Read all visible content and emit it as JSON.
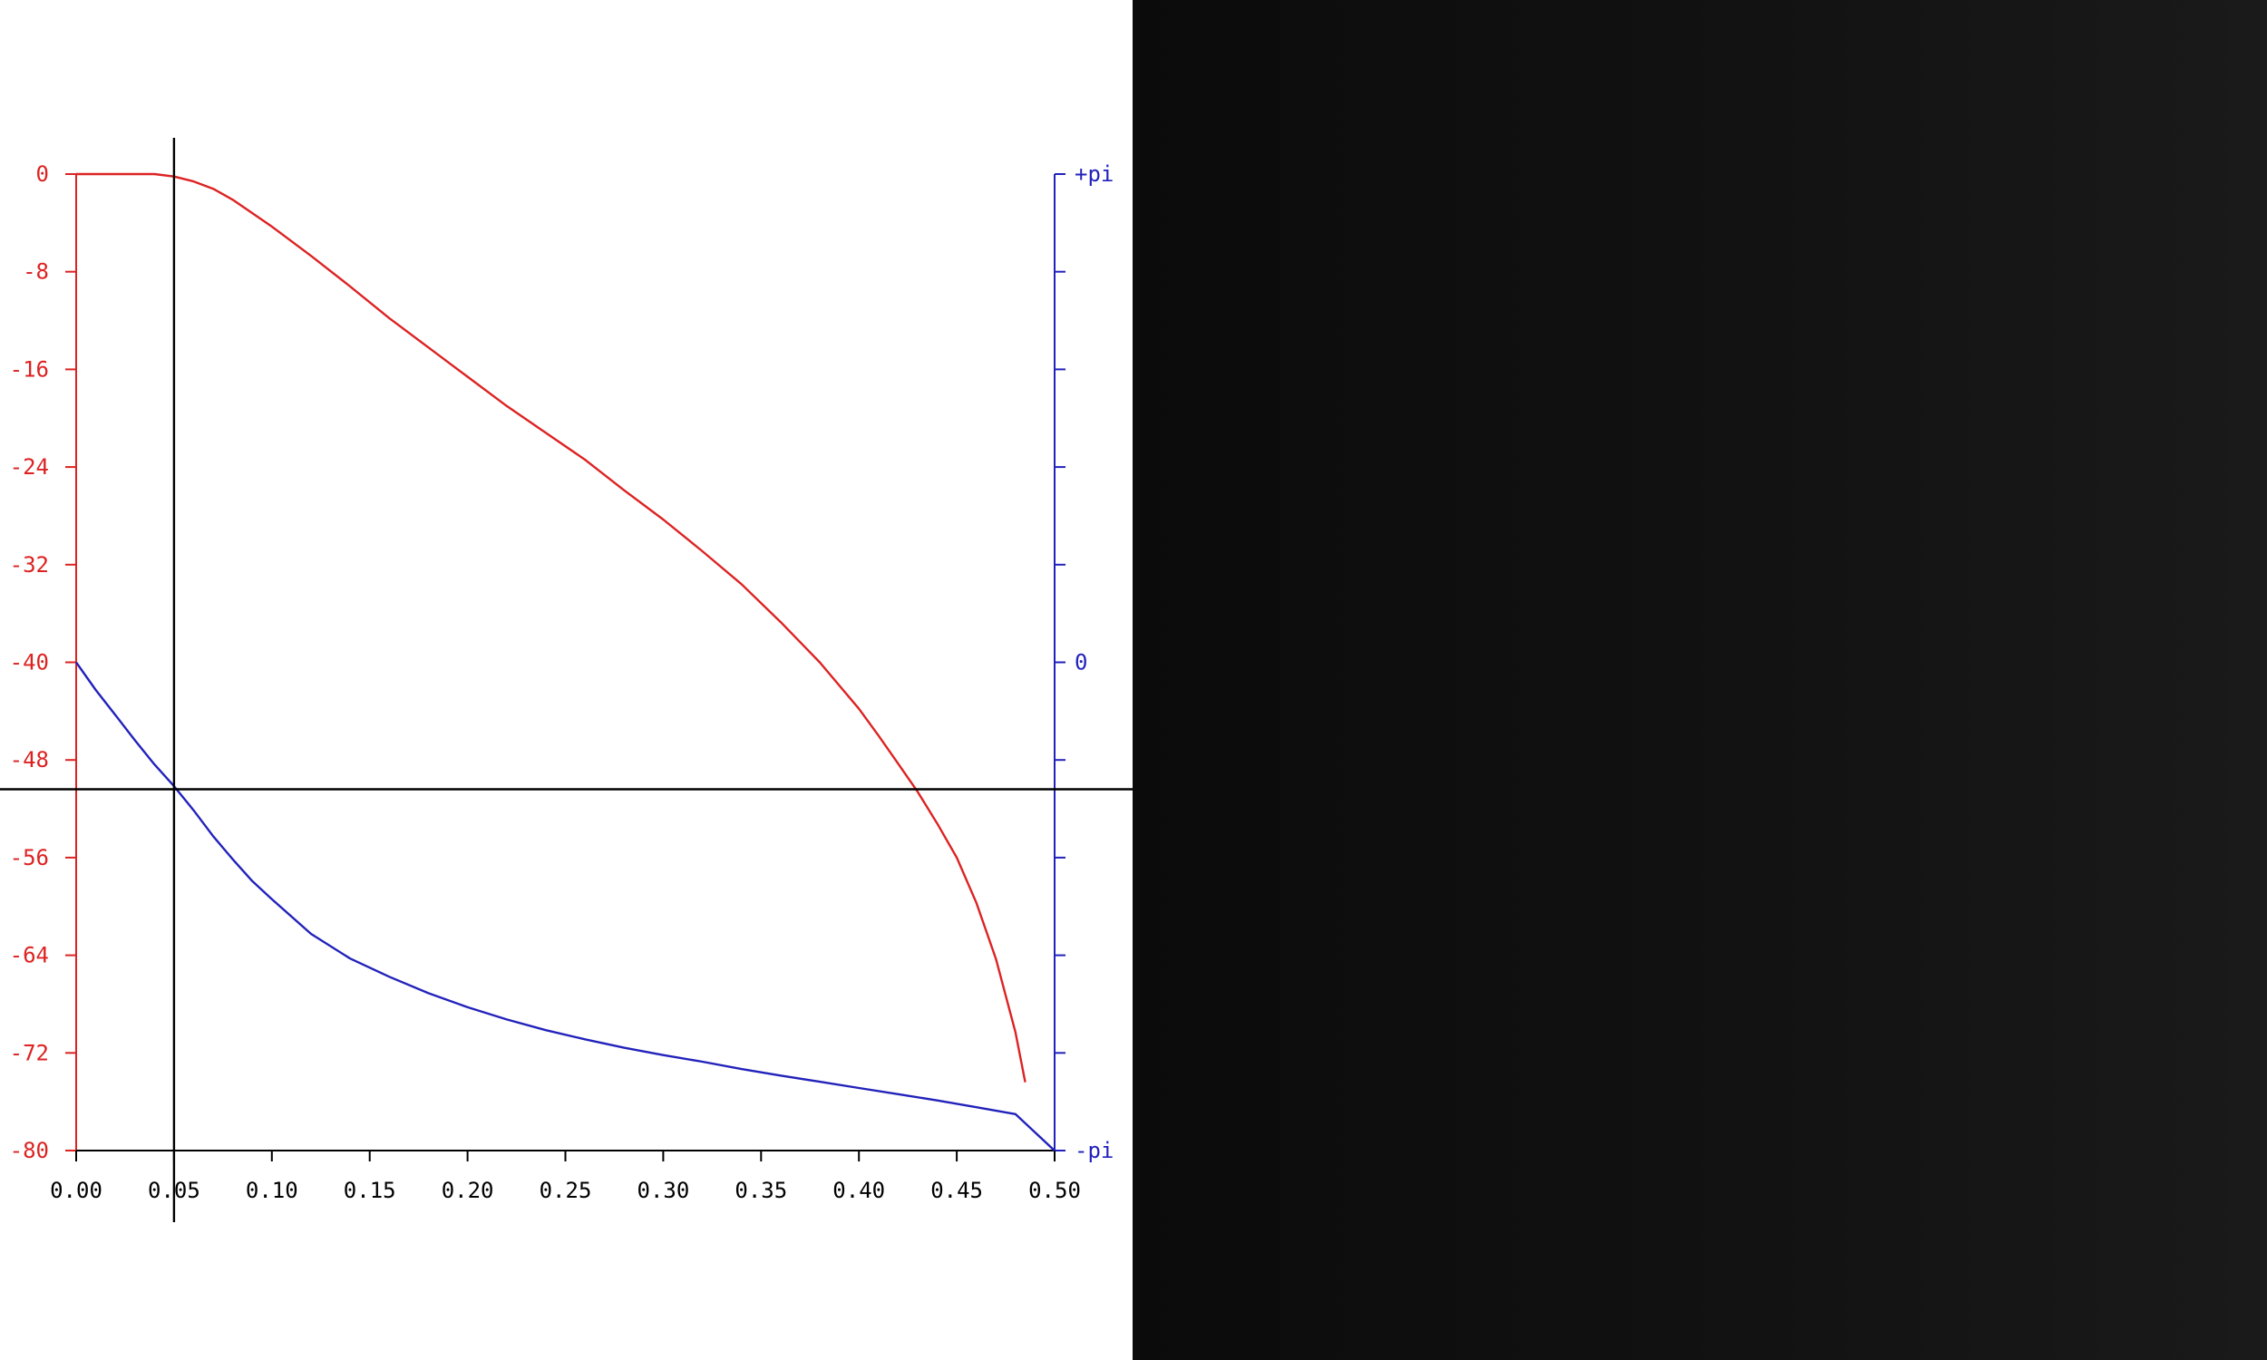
{
  "colors": {
    "left_axis": "#dd2222",
    "right_axis": "#2222bb",
    "bottom_axis": "#000000",
    "cursor": "#000000",
    "dark_panel": "#111111"
  },
  "chart_data": {
    "type": "line",
    "title": "",
    "xlabel": "",
    "ylabel": "",
    "xlim": [
      0,
      0.5
    ],
    "ylim": [
      -80,
      0
    ],
    "y2lim": [
      -3.14159,
      3.14159
    ],
    "grid": false,
    "x_ticks": [
      "0.00",
      "0.05",
      "0.10",
      "0.15",
      "0.20",
      "0.25",
      "0.30",
      "0.35",
      "0.40",
      "0.45",
      "0.50"
    ],
    "y_ticks": [
      "0",
      "-8",
      "-16",
      "-24",
      "-32",
      "-40",
      "-48",
      "-56",
      "-64",
      "-72",
      "-80"
    ],
    "y2_ticks": [
      {
        "value": 3.14159,
        "label": "+pi"
      },
      {
        "value": 2.5133,
        "label": ""
      },
      {
        "value": 1.885,
        "label": ""
      },
      {
        "value": 1.2566,
        "label": ""
      },
      {
        "value": 0.6283,
        "label": ""
      },
      {
        "value": 0,
        "label": "0"
      },
      {
        "value": -0.6283,
        "label": ""
      },
      {
        "value": -1.2566,
        "label": ""
      },
      {
        "value": -1.885,
        "label": ""
      },
      {
        "value": -2.5133,
        "label": ""
      },
      {
        "value": -3.14159,
        "label": "-pi"
      }
    ],
    "series": [
      {
        "axis": "left",
        "color": "#dd2222",
        "x": [
          0.0,
          0.02,
          0.04,
          0.05,
          0.06,
          0.07,
          0.08,
          0.1,
          0.12,
          0.14,
          0.16,
          0.18,
          0.2,
          0.22,
          0.24,
          0.26,
          0.28,
          0.3,
          0.32,
          0.34,
          0.36,
          0.38,
          0.4,
          0.41,
          0.42,
          0.43,
          0.44,
          0.45,
          0.46,
          0.47,
          0.48,
          0.485
        ],
        "y": [
          0,
          0,
          0,
          -0.2,
          -0.6,
          -1.2,
          -2.1,
          -4.3,
          -6.7,
          -9.2,
          -11.8,
          -14.2,
          -16.6,
          -19.0,
          -21.2,
          -23.4,
          -25.9,
          -28.3,
          -30.9,
          -33.6,
          -36.7,
          -40.0,
          -43.8,
          -46.0,
          -48.3,
          -50.6,
          -53.2,
          -56.0,
          -59.7,
          -64.3,
          -70.3,
          -74.4
        ]
      },
      {
        "axis": "right",
        "color": "#2222bb",
        "x": [
          0.0,
          0.01,
          0.02,
          0.03,
          0.04,
          0.05,
          0.06,
          0.07,
          0.08,
          0.09,
          0.1,
          0.12,
          0.14,
          0.16,
          0.18,
          0.2,
          0.22,
          0.24,
          0.26,
          0.28,
          0.3,
          0.32,
          0.34,
          0.36,
          0.38,
          0.4,
          0.42,
          0.44,
          0.46,
          0.48,
          0.5
        ],
        "y": [
          0,
          -0.178,
          -0.339,
          -0.501,
          -0.657,
          -0.797,
          -0.952,
          -1.119,
          -1.267,
          -1.408,
          -1.524,
          -1.747,
          -1.906,
          -2.023,
          -2.129,
          -2.219,
          -2.298,
          -2.367,
          -2.426,
          -2.48,
          -2.527,
          -2.57,
          -2.617,
          -2.659,
          -2.699,
          -2.739,
          -2.779,
          -2.819,
          -2.863,
          -2.907,
          -3.142
        ]
      }
    ],
    "cursor": {
      "x": 0.05,
      "y": -50.4
    }
  }
}
